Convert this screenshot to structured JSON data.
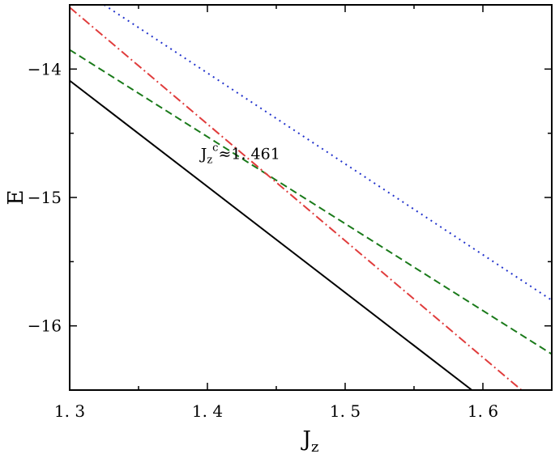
{
  "chart_data": {
    "type": "line",
    "title": "",
    "xlabel": "J",
    "xlabel_sub": "z",
    "ylabel": "E",
    "xlim": [
      1.3,
      1.65
    ],
    "ylim": [
      -16.5,
      -13.5
    ],
    "xticks": [
      1.3,
      1.4,
      1.5,
      1.6
    ],
    "xtick_labels": [
      "1. 3",
      "1. 4",
      "1. 5",
      "1. 6"
    ],
    "yticks": [
      -14,
      -15,
      -16
    ],
    "ytick_labels": [
      "−14",
      "−15",
      "−16"
    ],
    "grid": false,
    "legend": "none",
    "series": [
      {
        "style": "solid",
        "color": "#000000",
        "x": [
          1.3,
          1.592
        ],
        "y": [
          -14.09,
          -16.5
        ]
      },
      {
        "style": "dashed",
        "color": "#1a7a1a",
        "x": [
          1.3,
          1.65
        ],
        "y": [
          -13.85,
          -16.22
        ]
      },
      {
        "style": "dashdot",
        "color": "#e03c3c",
        "x": [
          1.3,
          1.628
        ],
        "y": [
          -13.52,
          -16.5
        ]
      },
      {
        "style": "dotted",
        "color": "#2233cc",
        "x": [
          1.325,
          1.65
        ],
        "y": [
          -13.5,
          -15.8
        ]
      }
    ],
    "annotations": [
      {
        "base": "J",
        "sub": "z",
        "sup": "c",
        "tail": "≈1. 461",
        "x": 1.461,
        "y": -14.72
      }
    ]
  }
}
